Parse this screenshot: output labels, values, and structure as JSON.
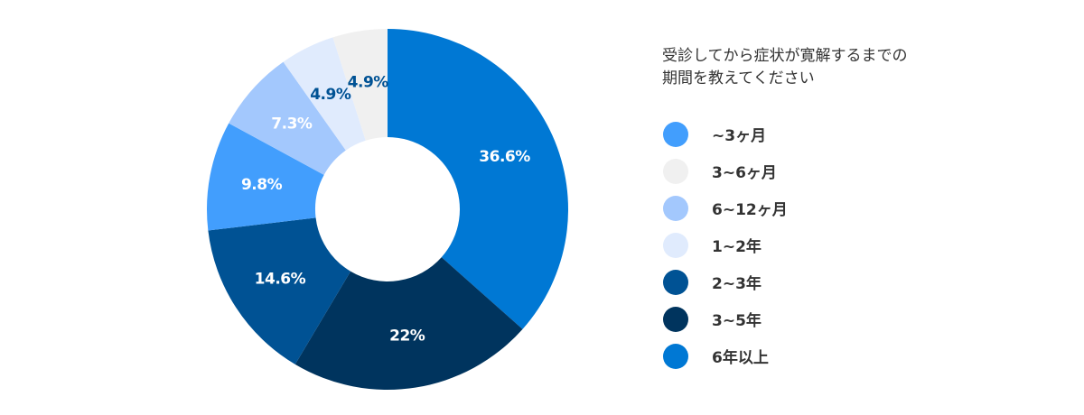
{
  "chart_data": {
    "type": "pie",
    "variant": "donut",
    "title": "受診してから症状が寛解するまでの期間を教えてください",
    "title_lines": [
      "受診してから症状が寛解するまでの",
      "期間を教えてください"
    ],
    "categories": [
      "~3ヶ月",
      "3~6ヶ月",
      "6~12ヶ月",
      "1~2年",
      "2~3年",
      "3~5年",
      "6年以上"
    ],
    "values": [
      9.8,
      4.9,
      7.3,
      4.9,
      14.6,
      22,
      36.6
    ],
    "value_labels": [
      "9.8%",
      "4.9%",
      "7.3%",
      "4.9%",
      "14.6%",
      "22%",
      "36.6%"
    ],
    "colors": [
      "#429efd",
      "#f0f0f0",
      "#a3c8fd",
      "#e0ebfd",
      "#005294",
      "#00345e",
      "#0078d4"
    ],
    "label_colors": [
      "#ffffff",
      "#005294",
      "#ffffff",
      "#005294",
      "#ffffff",
      "#ffffff",
      "#ffffff"
    ],
    "draw_order": [
      "6年以上",
      "3~5年",
      "2~3年",
      "~3ヶ月",
      "6~12ヶ月",
      "1~2年",
      "3~6ヶ月"
    ],
    "start_angle": "12 o'clock",
    "direction": "clockwise",
    "legend_position": "right"
  },
  "legend": {
    "title_line1": "受診してから症状が寛解するまでの",
    "title_line2": "期間を教えてください",
    "items": [
      {
        "label": "~3ヶ月",
        "color": "#429efd"
      },
      {
        "label": "3~6ヶ月",
        "color": "#f0f0f0"
      },
      {
        "label": "6~12ヶ月",
        "color": "#a3c8fd"
      },
      {
        "label": "1~2年",
        "color": "#e0ebfd"
      },
      {
        "label": "2~3年",
        "color": "#005294"
      },
      {
        "label": "3~5年",
        "color": "#00345e"
      },
      {
        "label": "6年以上",
        "color": "#0078d4"
      }
    ]
  }
}
